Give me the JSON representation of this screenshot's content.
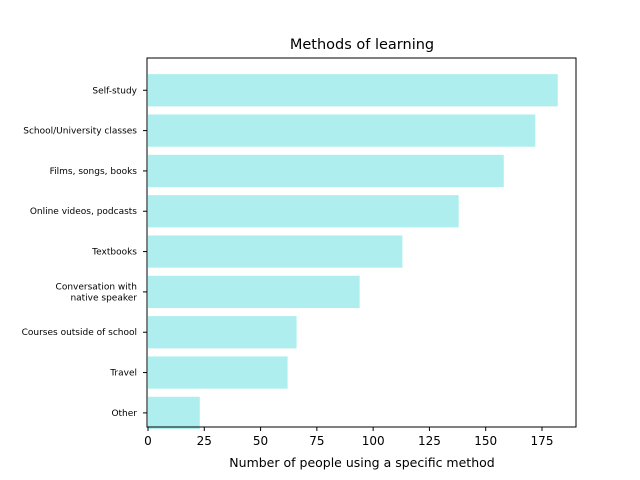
{
  "chart_data": {
    "type": "bar",
    "orientation": "horizontal",
    "title": "Methods of learning",
    "xlabel": "Number of people using a specific method",
    "ylabel": "",
    "xlim": [
      0,
      192
    ],
    "xticks": [
      0,
      25,
      50,
      75,
      100,
      125,
      150,
      175
    ],
    "grid": false,
    "bar_color": "#afeeee",
    "categories": [
      [
        "Self-study"
      ],
      [
        "School/University classes"
      ],
      [
        "Films, songs, books"
      ],
      [
        "Online videos, podcasts"
      ],
      [
        "Textbooks"
      ],
      [
        "Conversation with",
        "native speaker"
      ],
      [
        "Courses outside of school"
      ],
      [
        "Travel"
      ],
      [
        "Other"
      ]
    ],
    "values": [
      182,
      172,
      158,
      138,
      113,
      94,
      66,
      62,
      23
    ]
  }
}
